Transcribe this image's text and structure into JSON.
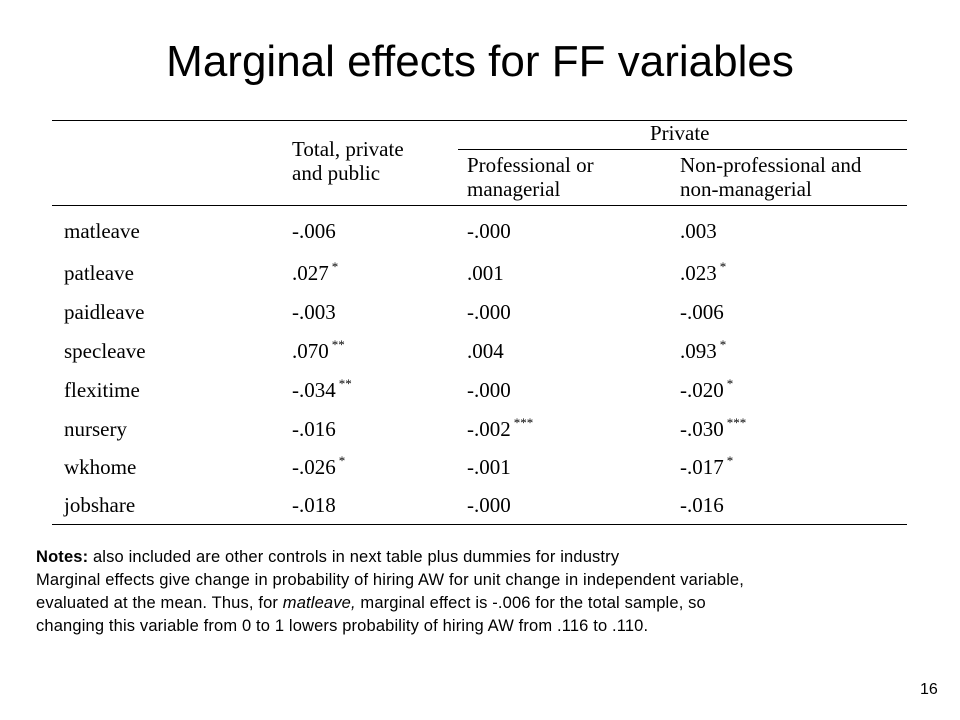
{
  "title": "Marginal effects for FF variables",
  "table": {
    "group_header": "Private",
    "columns": [
      {
        "line1": "Total, private",
        "line2": "and public"
      },
      {
        "line1": "Professional or",
        "line2": "managerial"
      },
      {
        "line1": "Non-professional and",
        "line2": "non-managerial"
      }
    ],
    "rows": [
      {
        "label": "matleave",
        "cells": [
          {
            "v": "-.006",
            "s": ""
          },
          {
            "v": "-.000",
            "s": ""
          },
          {
            "v": ".003",
            "s": ""
          }
        ]
      },
      {
        "label": "patleave",
        "cells": [
          {
            "v": ".027",
            "s": "*"
          },
          {
            "v": ".001",
            "s": ""
          },
          {
            "v": ".023",
            "s": "*"
          }
        ]
      },
      {
        "label": "paidleave",
        "cells": [
          {
            "v": "-.003",
            "s": ""
          },
          {
            "v": "-.000",
            "s": ""
          },
          {
            "v": "-.006",
            "s": ""
          }
        ]
      },
      {
        "label": "specleave",
        "cells": [
          {
            "v": ".070",
            "s": "**"
          },
          {
            "v": ".004",
            "s": ""
          },
          {
            "v": ".093",
            "s": "*"
          }
        ]
      },
      {
        "label": "flexitime",
        "cells": [
          {
            "v": "-.034",
            "s": "**"
          },
          {
            "v": "-.000",
            "s": ""
          },
          {
            "v": "-.020",
            "s": "*"
          }
        ]
      },
      {
        "label": "nursery",
        "cells": [
          {
            "v": "-.016",
            "s": ""
          },
          {
            "v": "-.002",
            "s": "***"
          },
          {
            "v": "-.030",
            "s": "***"
          }
        ]
      },
      {
        "label": "wkhome",
        "cells": [
          {
            "v": "-.026",
            "s": "*"
          },
          {
            "v": "-.001",
            "s": ""
          },
          {
            "v": "-.017",
            "s": "*"
          }
        ]
      },
      {
        "label": "jobshare",
        "cells": [
          {
            "v": "-.018",
            "s": ""
          },
          {
            "v": "-.000",
            "s": ""
          },
          {
            "v": "-.016",
            "s": ""
          }
        ]
      }
    ]
  },
  "notes": {
    "label": "Notes:",
    "line1": " also included are other controls in next table plus dummies for industry",
    "line2": "Marginal effects give change in probability of hiring AW for unit change in independent variable,",
    "line3_pre": "evaluated at the mean. Thus, for ",
    "line3_em": "matleave,",
    "line3_post": " marginal effect is -.006 for the total sample, so",
    "line4": "changing this variable from 0 to 1 lowers probability of hiring AW from .116 to .110."
  },
  "page_number": "16"
}
